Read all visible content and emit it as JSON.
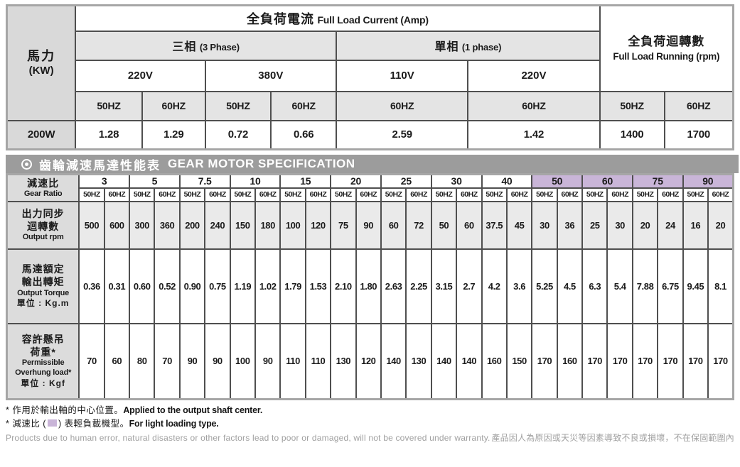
{
  "load_current_table": {
    "power": {
      "zh": "馬力",
      "en": "(KW)"
    },
    "header": {
      "zh": "全負荷電流",
      "en": "Full Load Current (Amp)"
    },
    "three_phase": {
      "zh": "三相",
      "en": "(3 Phase)"
    },
    "single_phase": {
      "zh": "單相",
      "en": "(1 phase)"
    },
    "running": {
      "zh": "全負荷迴轉數",
      "en": "Full Load Running (rpm)"
    },
    "voltages": [
      "220V",
      "380V",
      "110V",
      "220V"
    ],
    "hz_row": [
      "50HZ",
      "60HZ",
      "50HZ",
      "60HZ",
      "60HZ",
      "60HZ",
      "50HZ",
      "60HZ"
    ],
    "data_row": {
      "power": "200W",
      "values": [
        "1.28",
        "1.29",
        "0.72",
        "0.66",
        "2.59",
        "1.42",
        "1400",
        "1700"
      ]
    }
  },
  "spec_table": {
    "title": {
      "zh": "齒輪減速馬達性能表",
      "en": "GEAR MOTOR SPECIFICATION"
    },
    "gear_ratio": {
      "zh": "減速比",
      "en": "Gear Ratio"
    },
    "hz_labels": [
      "50HZ",
      "60HZ"
    ],
    "ratios": [
      {
        "value": "3",
        "light": false
      },
      {
        "value": "5",
        "light": false
      },
      {
        "value": "7.5",
        "light": false
      },
      {
        "value": "10",
        "light": false
      },
      {
        "value": "15",
        "light": false
      },
      {
        "value": "20",
        "light": false
      },
      {
        "value": "25",
        "light": false
      },
      {
        "value": "30",
        "light": false
      },
      {
        "value": "40",
        "light": false
      },
      {
        "value": "50",
        "light": true
      },
      {
        "value": "60",
        "light": true
      },
      {
        "value": "75",
        "light": true
      },
      {
        "value": "90",
        "light": true
      }
    ],
    "rows": {
      "output_rpm": {
        "label_zh": [
          "出力同步",
          "迴轉數"
        ],
        "label_en": [
          "Output rpm"
        ],
        "unit": "",
        "values": [
          "500",
          "600",
          "300",
          "360",
          "200",
          "240",
          "150",
          "180",
          "100",
          "120",
          "75",
          "90",
          "60",
          "72",
          "50",
          "60",
          "37.5",
          "45",
          "30",
          "36",
          "25",
          "30",
          "20",
          "24",
          "16",
          "20"
        ]
      },
      "output_torque": {
        "label_zh": [
          "馬達額定",
          "輸出轉矩"
        ],
        "label_en": [
          "Output Torque"
        ],
        "unit": "單位 : Kg.m",
        "values": [
          "0.36",
          "0.31",
          "0.60",
          "0.52",
          "0.90",
          "0.75",
          "1.19",
          "1.02",
          "1.79",
          "1.53",
          "2.10",
          "1.80",
          "2.63",
          "2.25",
          "3.15",
          "2.7",
          "4.2",
          "3.6",
          "5.25",
          "4.5",
          "6.3",
          "5.4",
          "7.88",
          "6.75",
          "9.45",
          "8.1"
        ]
      },
      "overhung_load": {
        "label_zh": [
          "容許懸吊",
          "荷重*"
        ],
        "label_en": [
          "Permissible",
          "Overhung load*"
        ],
        "unit": "單位 : Kgf",
        "values": [
          "70",
          "60",
          "80",
          "70",
          "90",
          "90",
          "100",
          "90",
          "110",
          "110",
          "130",
          "120",
          "140",
          "130",
          "140",
          "140",
          "160",
          "150",
          "170",
          "160",
          "170",
          "170",
          "170",
          "170",
          "170",
          "170"
        ]
      }
    }
  },
  "footnotes": {
    "note1": {
      "zh": "* 作用於輸出軸的中心位置。",
      "en": "Applied to the output shaft center."
    },
    "note2": {
      "zh_pre": "* 減速比 (",
      "zh_post": ") 表輕負載機型。",
      "en": "For light loading type."
    },
    "note3": {
      "en": "Products due to human error, natural disasters or other factors lead to poor or damaged, will not be covered under warranty.",
      "zh": "產品因人為原因或天災等因素導致不良或損壞，不在保固範圍內"
    }
  },
  "colors": {
    "highlight_purple": "#c9b5d8",
    "title_bar_gray": "#9c9c9c",
    "label_gray": "#dcdcdc",
    "band_gray": "#e4e4e4",
    "rpm_cell_gray": "#eaeaea",
    "border_dark": "#4f4f4f",
    "border_outer": "#a6a6a6"
  }
}
